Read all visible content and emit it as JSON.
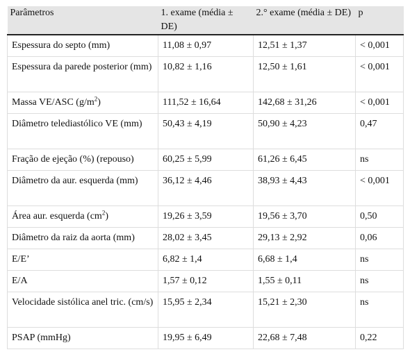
{
  "header": {
    "col1": "Parâmetros",
    "col2": "1. exame (média ± DE)",
    "col3": "2.° exame (média ± DE)",
    "col4": "p"
  },
  "rows": [
    {
      "param": "Espessura do septo (mm)",
      "exam1": "11,08 ± 0,97",
      "exam2": "12,51 ± 1,37",
      "p": "< 0,001"
    },
    {
      "param": "Espessura da parede posterior (mm)",
      "exam1": "10,82 ± 1,16",
      "exam2": "12,50 ± 1,61",
      "p": "< 0,001"
    },
    {
      "param": "Massa VE/ASC (g/m",
      "param_sup": "2",
      "param_end": ")",
      "exam1": "111,52 ± 16,64",
      "exam2": "142,68 ± 31,26",
      "p": "< 0,001"
    },
    {
      "param": "Diâmetro telediastólico VE (mm)",
      "exam1": "50,43 ± 4,19",
      "exam2": "50,90 ± 4,23",
      "p": "0,47"
    },
    {
      "param": "Fração de ejeção (%) (repouso)",
      "exam1": "60,25 ± 5,99",
      "exam2": "61,26 ± 6,45",
      "p": "ns"
    },
    {
      "param": "Diâmetro da aur. esquerda (mm)",
      "exam1": "36,12 ± 4,46",
      "exam2": "38,93 ± 4,43",
      "p": "< 0,001"
    },
    {
      "param": "Área aur. esquerda (cm",
      "param_sup": "2",
      "param_end": ")",
      "exam1": "19,26 ± 3,59",
      "exam2": "19,56 ± 3,70",
      "p": "0,50"
    },
    {
      "param": "Diâmetro da raiz da aorta (mm)",
      "exam1": "28,02 ± 3,45",
      "exam2": "29,13 ± 2,92",
      "p": "0,06"
    },
    {
      "param": "E/E’",
      "exam1": "6,82 ± 1,4",
      "exam2": "6,68 ± 1,4",
      "p": "ns"
    },
    {
      "param": "E/A",
      "exam1": "1,57 ± 0,12",
      "exam2": "1,55 ± 0,11",
      "p": "ns"
    },
    {
      "param": "Velocidade sistólica anel tric. (cm/s)",
      "exam1": "15,95 ± 2,34",
      "exam2": "15,21 ± 2,30",
      "p": "ns"
    },
    {
      "param": "PSAP (mmHg)",
      "exam1": "19,95 ± 6,49",
      "exam2": "22,68 ± 7,48",
      "p": "0,22"
    }
  ]
}
